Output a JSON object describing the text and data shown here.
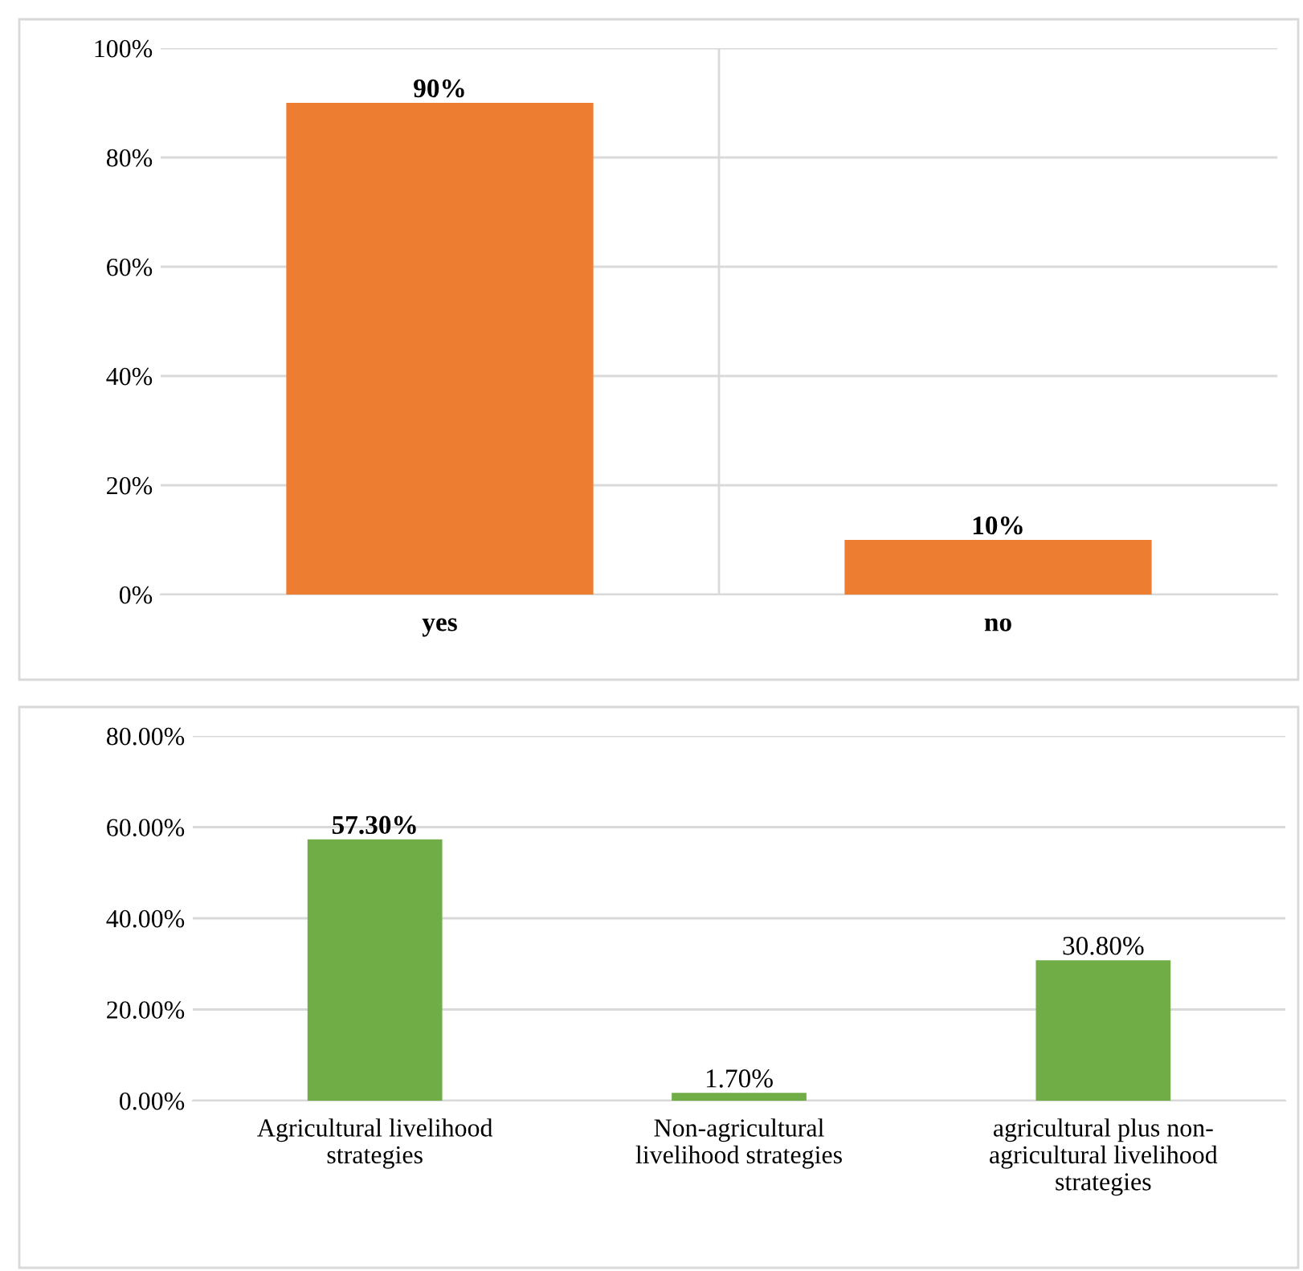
{
  "chart_data": [
    {
      "type": "bar",
      "categories": [
        "yes",
        "no"
      ],
      "values": [
        90,
        10
      ],
      "color": "#ed7d31",
      "value_labels": [
        "90%",
        "10%"
      ],
      "ylim": [
        0,
        100
      ],
      "yticks": [
        {
          "value": 0,
          "label": "0%"
        },
        {
          "value": 20,
          "label": "20%"
        },
        {
          "value": 40,
          "label": "40%"
        },
        {
          "value": 60,
          "label": "60%"
        },
        {
          "value": 80,
          "label": "80%"
        },
        {
          "value": 100,
          "label": "100%"
        }
      ],
      "grid": true
    },
    {
      "type": "bar",
      "categories": [
        "Agricultural livelihood\nstrategies",
        "Non-agricultural\nlivelihood strategies",
        "agricultural plus non-\nagricultural livelihood\nstrategies"
      ],
      "values": [
        57.3,
        1.7,
        30.8
      ],
      "color": "#70ad47",
      "value_labels": [
        "57.30%",
        "1.70%",
        "30.80%"
      ],
      "ylim": [
        0,
        80
      ],
      "yticks": [
        {
          "value": 0,
          "label": "0.00%"
        },
        {
          "value": 20,
          "label": "20.00%"
        },
        {
          "value": 40,
          "label": "40.00%"
        },
        {
          "value": 60,
          "label": "60.00%"
        },
        {
          "value": 80,
          "label": "80.00%"
        }
      ],
      "grid": "y"
    }
  ]
}
